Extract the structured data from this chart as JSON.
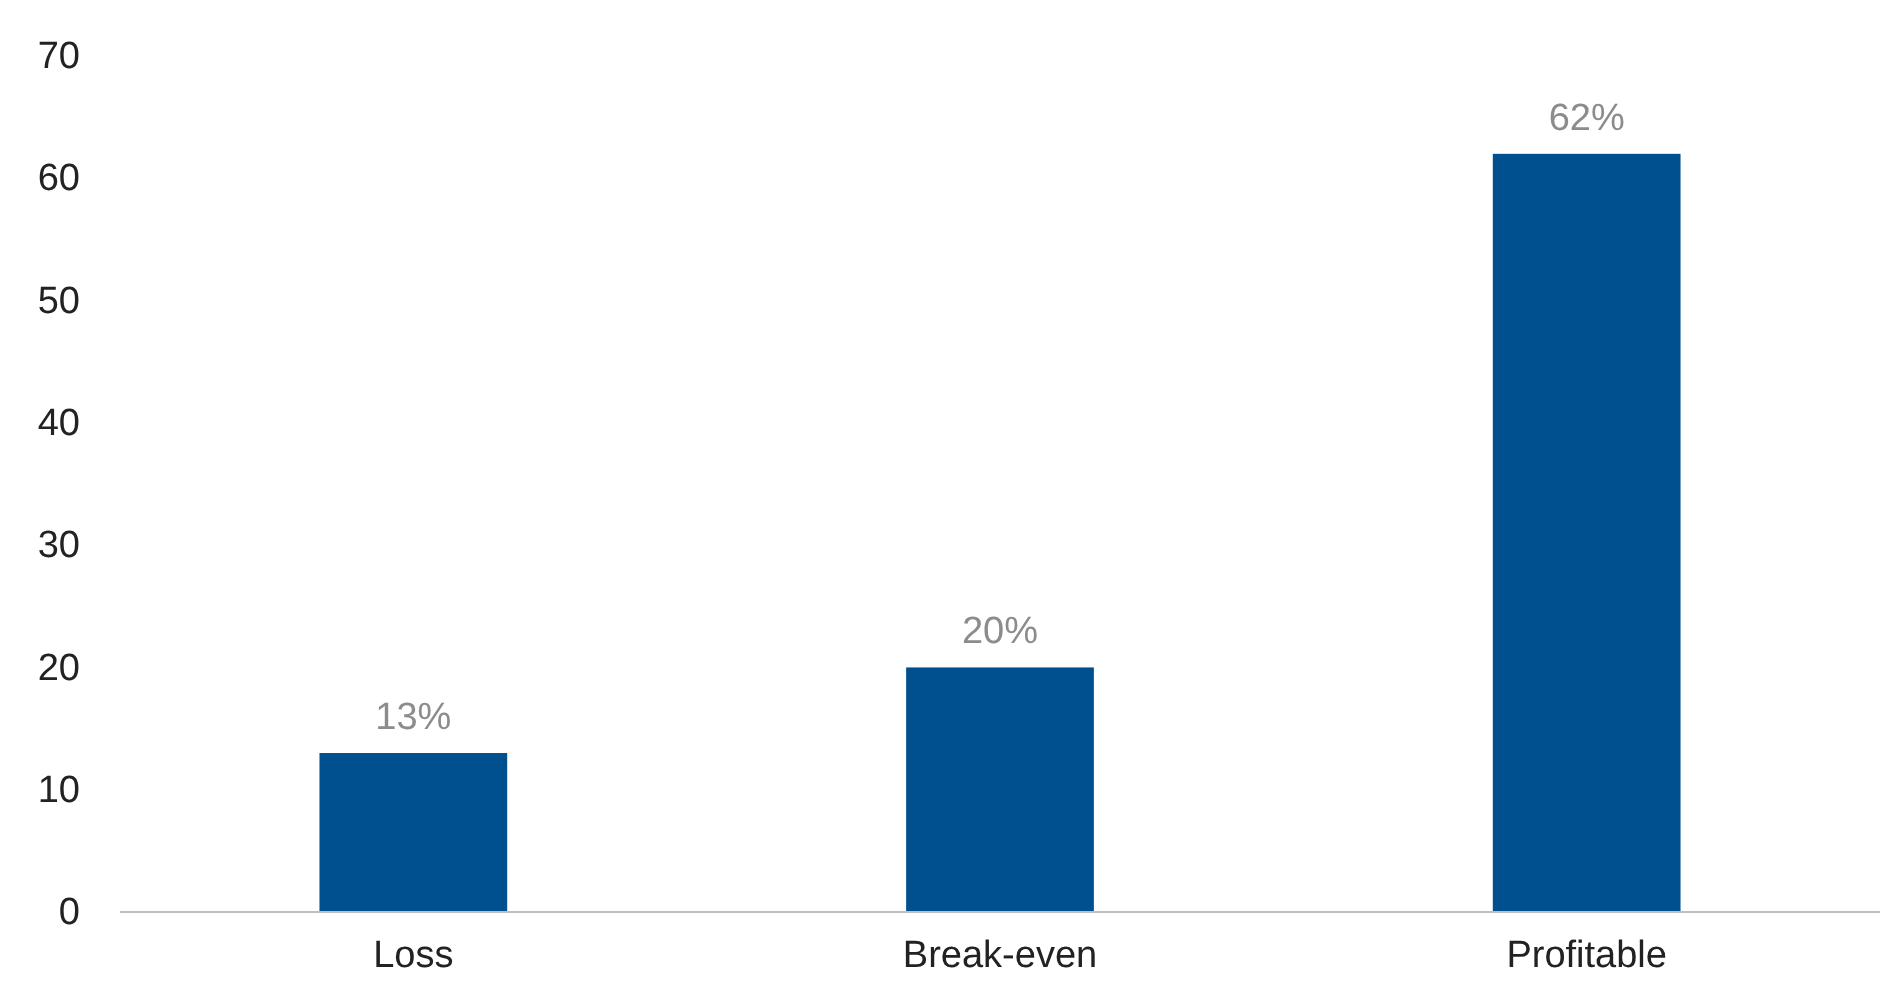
{
  "chart_data": {
    "type": "bar",
    "categories": [
      "Loss",
      "Break-even",
      "Profitable"
    ],
    "values": [
      13,
      20,
      62
    ],
    "value_labels": [
      "13%",
      "20%",
      "62%"
    ],
    "color": "#00508f",
    "ylim": [
      0,
      70
    ],
    "yticks": [
      0,
      10,
      20,
      30,
      40,
      50,
      60,
      70
    ],
    "grid": false
  }
}
